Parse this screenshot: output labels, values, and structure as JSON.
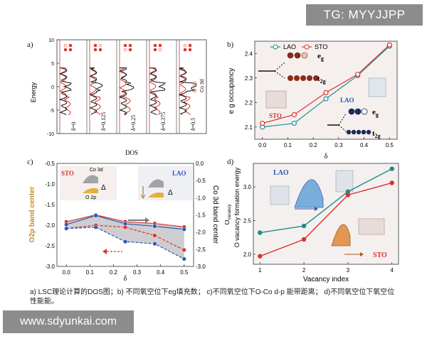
{
  "watermark_top": "TG: MYYJJPP",
  "watermark_bottom": "www.sdyunkai.com",
  "panel_labels": {
    "a": "a)",
    "b": "b)",
    "c": "c)",
    "d": "d)"
  },
  "caption": "a) LSC理论计算的DOS图；b) 不同氧空位下eg填充数； c)不同氧空位下O-Co d-p  能带距离； d)不同氧空位下氧空位性能能。",
  "colors": {
    "red": "#d9322d",
    "teal": "#1f8b8b",
    "blue": "#2a56b8",
    "dark": "#1b2a5c",
    "orange": "#c98a2a",
    "gray": "#9a9a9a"
  },
  "chart_data": [
    {
      "id": "a",
      "type": "line",
      "title": "",
      "xlabel": "DOS",
      "ylabel": "Energy",
      "ylim": [
        -10,
        10
      ],
      "yticks": [
        -10,
        -5,
        0,
        5,
        10
      ],
      "panels": [
        "δ=0",
        "δ=0.125",
        "δ=0.25",
        "δ=0.375",
        "δ=0.5"
      ],
      "legend": [
        "O 2p",
        "Co 3d"
      ]
    },
    {
      "id": "b",
      "type": "line",
      "xlabel": "δ",
      "ylabel": "e g occupancy",
      "x": [
        0.0,
        0.125,
        0.25,
        0.375,
        0.5
      ],
      "xticks": [
        "0.0",
        "0.1",
        "0.2",
        "0.3",
        "0.4",
        "0.5"
      ],
      "ylim": [
        2.05,
        2.45
      ],
      "yticks": [
        "2.1",
        "2.2",
        "2.3",
        "2.4"
      ],
      "series": [
        {
          "name": "LAO",
          "color": "#1f8b8b",
          "values": [
            2.1,
            2.115,
            2.215,
            2.31,
            2.43
          ]
        },
        {
          "name": "STO",
          "color": "#d9322d",
          "values": [
            2.115,
            2.15,
            2.24,
            2.315,
            2.435
          ]
        }
      ],
      "annotations": {
        "eg": "e",
        "eg_sub": "g",
        "t2g": "t",
        "t2g_sub": "2g",
        "lao": "LAO",
        "sto": "STO"
      }
    },
    {
      "id": "c",
      "type": "line",
      "xlabel": "δ",
      "ylabel": "O2p band center",
      "ylabel2": "Co 3d band center",
      "x": [
        0.0,
        0.125,
        0.25,
        0.375,
        0.5
      ],
      "xticks": [
        "0.0",
        "0.1",
        "0.2",
        "0.3",
        "0.4",
        "0.5"
      ],
      "ylim": [
        -3.0,
        -0.5
      ],
      "yticks": [
        "-3.0",
        "-2.5",
        "-2.0",
        "-1.5",
        "-1.0",
        "-0.5"
      ],
      "ylim2": [
        -3.0,
        0.0
      ],
      "yticks2": [
        "0.0",
        "-0.5",
        "-1.0",
        "-1.5",
        "-2.0",
        "-2.5",
        "-3.0"
      ],
      "series": [
        {
          "name": "STO Co 3d",
          "axis": "right",
          "color": "#d9322d",
          "values": [
            -1.7,
            -1.5,
            -1.7,
            -1.75,
            -1.85
          ]
        },
        {
          "name": "LAO Co 3d",
          "axis": "right",
          "color": "#2a56b8",
          "values": [
            -1.78,
            -1.52,
            -1.76,
            -1.83,
            -1.92
          ]
        },
        {
          "name": "STO O 2p",
          "axis": "left",
          "color": "#d9322d",
          "values": [
            -2.08,
            -2.0,
            -2.05,
            -2.25,
            -2.6
          ]
        },
        {
          "name": "LAO O 2p",
          "axis": "left",
          "color": "#2a56b8",
          "values": [
            -2.08,
            -2.05,
            -2.4,
            -2.45,
            -2.82
          ]
        }
      ],
      "annotations": {
        "sto": "STO",
        "lao": "LAO",
        "co3d": "Co 3d",
        "o2p": "O 2p",
        "delta": "Δ"
      }
    },
    {
      "id": "d",
      "type": "line",
      "xlabel": "Vacancy index",
      "ylabel": "O vacancy formation energy",
      "ylabel_sub": "vacancy",
      "x": [
        1,
        2,
        3,
        4
      ],
      "xticks": [
        "1",
        "2",
        "3",
        "4"
      ],
      "ylim": [
        1.85,
        3.35
      ],
      "yticks": [
        "2.0",
        "2.5",
        "3.0"
      ],
      "series": [
        {
          "name": "LAO",
          "color": "#1f8b8b",
          "values": [
            2.32,
            2.42,
            2.93,
            3.27
          ]
        },
        {
          "name": "STO",
          "color": "#d9322d",
          "values": [
            1.97,
            2.22,
            2.88,
            3.06
          ]
        }
      ],
      "annotations": {
        "lao": "LAO",
        "sto": "STO"
      }
    }
  ]
}
